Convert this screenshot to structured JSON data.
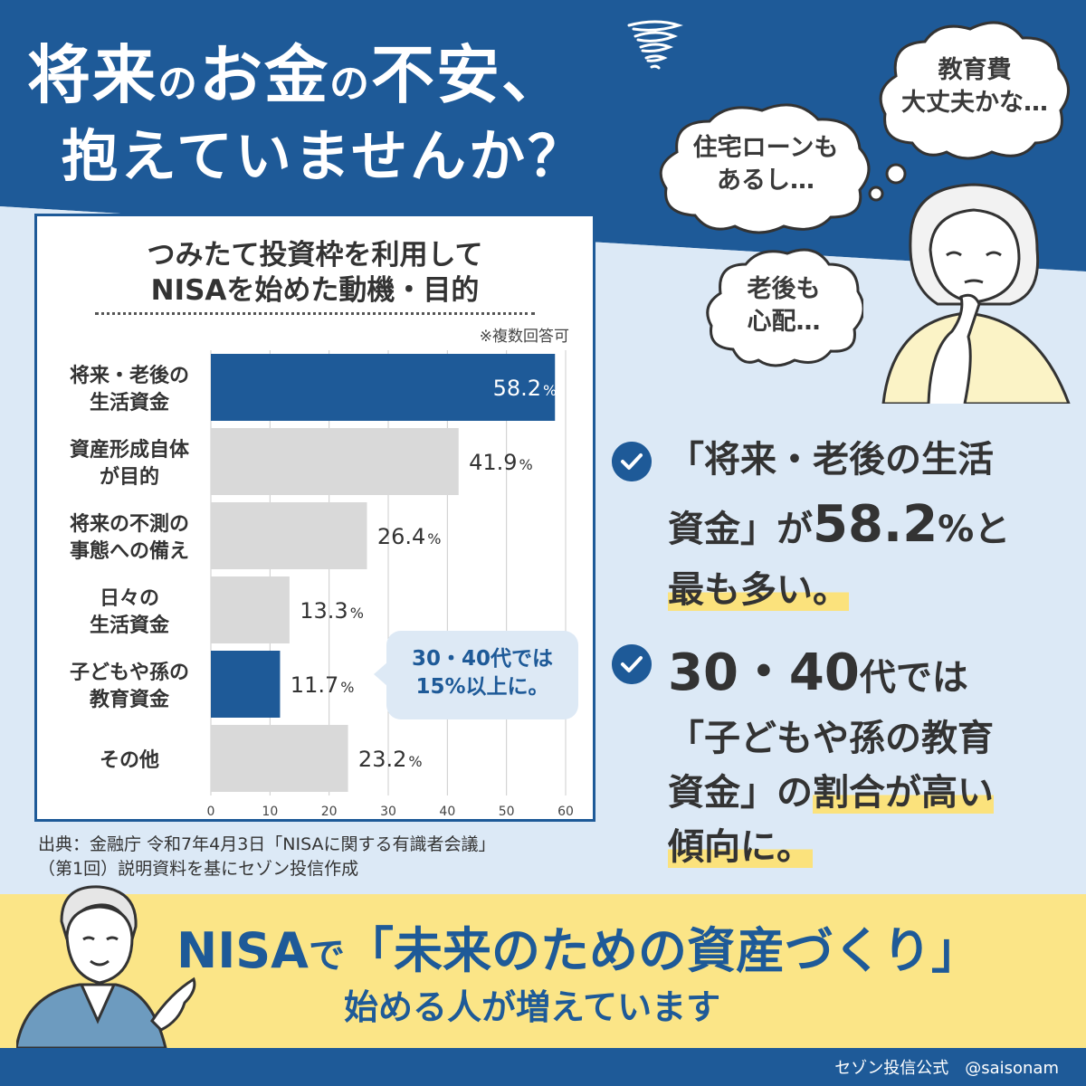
{
  "headline": {
    "line1_a": "将来",
    "line1_b": "の",
    "line1_c": "お金",
    "line1_d": "の",
    "line1_e": "不安、",
    "line2": "抱えていませんか？"
  },
  "thoughts": [
    {
      "lines": [
        "教育費",
        "大丈夫かな…"
      ]
    },
    {
      "lines": [
        "住宅ローンも",
        "あるし…"
      ]
    },
    {
      "lines": [
        "老後も",
        "心配…"
      ]
    }
  ],
  "chart_data": {
    "type": "bar",
    "orientation": "horizontal",
    "title_lines": [
      "つみたて投資枠を利用して",
      "NISAを始めた動機・目的"
    ],
    "note": "※複数回答可",
    "categories": [
      [
        "将来・老後の",
        "生活資金"
      ],
      [
        "資産形成自体",
        "が目的"
      ],
      [
        "将来の不測の",
        "事態への備え"
      ],
      [
        "日々の",
        "生活資金"
      ],
      [
        "子どもや孫の",
        "教育資金"
      ],
      [
        "その他"
      ]
    ],
    "values": [
      58.2,
      41.9,
      26.4,
      13.3,
      11.7,
      23.2
    ],
    "unit": "%",
    "highlighted": [
      true,
      false,
      false,
      false,
      true,
      false
    ],
    "xlim": [
      0,
      60
    ],
    "xticks": [
      0,
      10,
      20,
      30,
      40,
      50,
      60
    ],
    "grid": true,
    "colors": {
      "highlight": "#1e5a98",
      "normal": "#d9d9d9"
    },
    "callout_lines": [
      "30・40代では",
      "15%以上に。"
    ]
  },
  "source_lines": [
    "出典：金融庁 令和7年4月3日「NISAに関する有識者会議」",
    "（第1回）説明資料を基にセゾン投信作成"
  ],
  "points": [
    {
      "p1": "「将来・老後の生活",
      "p2": "資金」が",
      "p3": "58.2",
      "p4": "%と",
      "p5": "最も多い。"
    },
    {
      "p1": "30・40",
      "p2": "代では",
      "p3": "「子どもや孫の教育",
      "p4": "資金」の",
      "p5": "割合が高い",
      "p6": "傾向に。"
    }
  ],
  "banner": {
    "l1_a": "NISA",
    "l1_b": "で",
    "l1_c": "「未来のための資産づくり」",
    "l2": "始める人が増えています"
  },
  "footer": {
    "text": "セゾン投信公式　@saisonam"
  },
  "colors": {
    "brand": "#1e5a98",
    "accent": "#fbe587",
    "light": "#dce9f6"
  }
}
